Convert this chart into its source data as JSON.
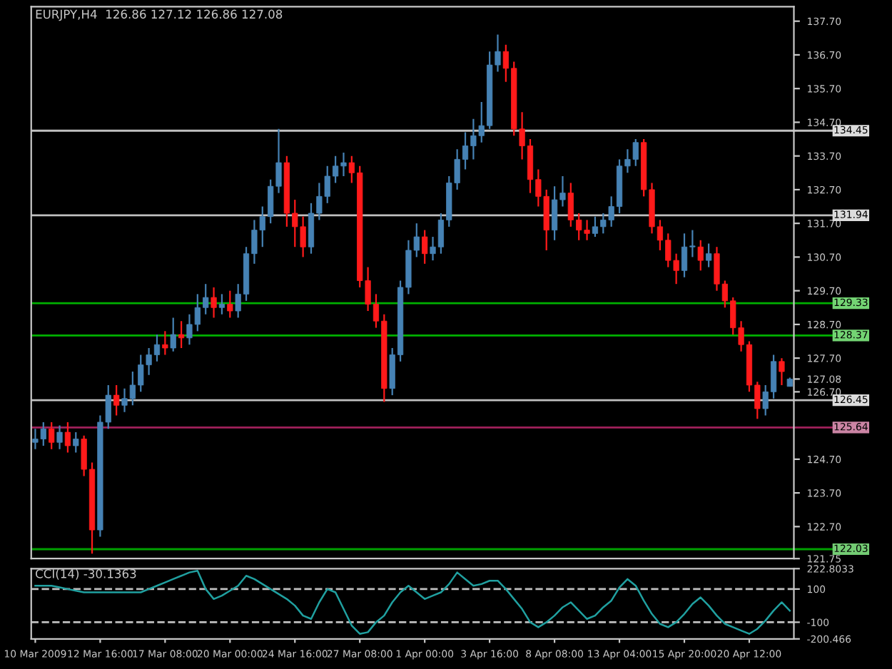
{
  "chart_data": [
    {
      "type": "candlestick",
      "title": "EURJPY,H4  126.86 127.12 126.86 127.08",
      "colors": [
        "#4682b4",
        "#4682b4",
        "#ff1a1a",
        "#4682b4",
        "#ff1a1a",
        "#4682b4",
        "#ff1a1a",
        "#ff1a1a",
        "#4682b4",
        "#4682b4",
        "#ff1a1a",
        "#4682b4",
        "#4682b4",
        "#4682b4",
        "#4682b4",
        "#4682b4",
        "#ff1a1a",
        "#4682b4",
        "#ff1a1a",
        "#4682b4",
        "#4682b4",
        "#4682b4",
        "#ff1a1a",
        "#4682b4",
        "#ff1a1a",
        "#4682b4",
        "#4682b4",
        "#4682b4",
        "#4682b4",
        "#4682b4",
        "#4682b4",
        "#ff1a1a",
        "#ff1a1a",
        "#ff1a1a",
        "#4682b4",
        "#4682b4",
        "#4682b4",
        "#4682b4",
        "#4682b4",
        "#ff1a1a",
        "#ff1a1a",
        "#ff1a1a",
        "#ff1a1a",
        "#ff1a1a",
        "#4682b4",
        "#4682b4",
        "#4682b4",
        "#4682b4",
        "#ff1a1a",
        "#4682b4",
        "#4682b4",
        "#4682b4",
        "#4682b4",
        "#4682b4",
        "#4682b4",
        "#4682b4",
        "#4682b4",
        "#4682b4",
        "#ff1a1a",
        "#ff1a1a",
        "#ff1a1a",
        "#ff1a1a",
        "#ff1a1a",
        "#ff1a1a",
        "#4682b4",
        "#4682b4",
        "#ff1a1a",
        "#ff1a1a",
        "#ff1a1a",
        "#4682b4",
        "#4682b4",
        "#4682b4",
        "#4682b4",
        "#4682b4",
        "#4682b4",
        "#ff1a1a",
        "#ff1a1a",
        "#ff1a1a",
        "#ff1a1a",
        "#ff1a1a",
        "#4682b4",
        "#4682b4",
        "#ff1a1a",
        "#4682b4",
        "#ff1a1a",
        "#ff1a1a",
        "#ff1a1a",
        "#ff1a1a",
        "#ff1a1a",
        "#ff1a1a",
        "#4682b4",
        "#4682b4",
        "#ff1a1a",
        "#4682b4"
      ],
      "categories": [
        null,
        null,
        null,
        null,
        null,
        null,
        null,
        null,
        null,
        null,
        null,
        null,
        null,
        null,
        null,
        null,
        null,
        null,
        null,
        null,
        null,
        null,
        null,
        null,
        null,
        null,
        null,
        null,
        null,
        null,
        null,
        null,
        null,
        null,
        null,
        null,
        null,
        null,
        null,
        null,
        null,
        null,
        null,
        null,
        null,
        null,
        null,
        null,
        null,
        null,
        null,
        null,
        null,
        null,
        null,
        null,
        null,
        null,
        null,
        null,
        null,
        null,
        null,
        null,
        null,
        null,
        null,
        null,
        null,
        null,
        null,
        null,
        null,
        null,
        null,
        null,
        null,
        null,
        null,
        null,
        null,
        null,
        null,
        null,
        null,
        null,
        null,
        null,
        null,
        null,
        null,
        null,
        null,
        null
      ],
      "ohlc": [
        [
          125.2,
          125.6,
          125.0,
          125.3
        ],
        [
          125.3,
          125.8,
          125.1,
          125.6
        ],
        [
          125.6,
          125.8,
          125.0,
          125.2
        ],
        [
          125.2,
          125.7,
          125.0,
          125.5
        ],
        [
          125.5,
          125.8,
          124.9,
          125.1
        ],
        [
          125.1,
          125.5,
          124.9,
          125.3
        ],
        [
          125.3,
          125.4,
          124.2,
          124.4
        ],
        [
          124.4,
          124.6,
          121.9,
          122.6
        ],
        [
          122.6,
          126.0,
          122.4,
          125.8
        ],
        [
          125.8,
          126.9,
          125.6,
          126.6
        ],
        [
          126.6,
          126.9,
          126.0,
          126.3
        ],
        [
          126.3,
          126.8,
          126.1,
          126.5
        ],
        [
          126.5,
          127.3,
          126.3,
          126.9
        ],
        [
          126.9,
          127.8,
          126.7,
          127.5
        ],
        [
          127.5,
          128.0,
          127.2,
          127.8
        ],
        [
          127.8,
          128.4,
          127.6,
          128.1
        ],
        [
          128.1,
          128.5,
          127.8,
          128.0
        ],
        [
          128.0,
          128.9,
          127.9,
          128.4
        ],
        [
          128.4,
          128.8,
          128.0,
          128.3
        ],
        [
          128.3,
          129.0,
          128.1,
          128.7
        ],
        [
          128.7,
          129.6,
          128.5,
          129.2
        ],
        [
          129.2,
          129.9,
          129.0,
          129.5
        ],
        [
          129.5,
          129.8,
          128.9,
          129.2
        ],
        [
          129.2,
          129.6,
          129.0,
          129.3
        ],
        [
          129.3,
          129.7,
          128.9,
          129.1
        ],
        [
          129.1,
          129.9,
          128.9,
          129.6
        ],
        [
          129.6,
          131.0,
          129.4,
          130.8
        ],
        [
          130.8,
          131.8,
          130.5,
          131.5
        ],
        [
          131.5,
          132.2,
          131.0,
          131.9
        ],
        [
          131.9,
          133.0,
          131.7,
          132.8
        ],
        [
          132.8,
          134.5,
          132.6,
          133.5
        ],
        [
          133.5,
          133.7,
          131.6,
          132.0
        ],
        [
          132.0,
          132.4,
          131.0,
          131.6
        ],
        [
          131.6,
          131.9,
          130.7,
          131.0
        ],
        [
          131.0,
          132.3,
          130.8,
          132.0
        ],
        [
          132.0,
          132.9,
          131.8,
          132.5
        ],
        [
          132.5,
          133.4,
          132.3,
          133.1
        ],
        [
          133.1,
          133.7,
          132.9,
          133.4
        ],
        [
          133.4,
          133.8,
          133.1,
          133.5
        ],
        [
          133.5,
          133.7,
          132.9,
          133.2
        ],
        [
          133.2,
          133.4,
          129.8,
          130.0
        ],
        [
          130.0,
          130.4,
          129.1,
          129.3
        ],
        [
          129.3,
          129.6,
          128.6,
          128.8
        ],
        [
          128.8,
          129.0,
          126.4,
          126.8
        ],
        [
          126.8,
          128.0,
          126.6,
          127.8
        ],
        [
          127.8,
          130.0,
          127.6,
          129.8
        ],
        [
          129.8,
          131.2,
          129.6,
          130.9
        ],
        [
          130.9,
          131.7,
          130.7,
          131.3
        ],
        [
          131.3,
          131.5,
          130.5,
          130.8
        ],
        [
          130.8,
          131.3,
          130.6,
          131.0
        ],
        [
          131.0,
          132.0,
          130.8,
          131.8
        ],
        [
          131.8,
          133.1,
          131.6,
          132.9
        ],
        [
          132.9,
          133.9,
          132.7,
          133.6
        ],
        [
          133.6,
          134.4,
          133.3,
          134.0
        ],
        [
          134.0,
          134.8,
          133.6,
          134.3
        ],
        [
          134.3,
          135.3,
          134.1,
          134.6
        ],
        [
          134.6,
          136.8,
          134.5,
          136.4
        ],
        [
          136.4,
          137.3,
          136.2,
          136.8
        ],
        [
          136.8,
          137.0,
          135.9,
          136.3
        ],
        [
          136.3,
          136.5,
          134.3,
          134.5
        ],
        [
          134.5,
          135.0,
          133.6,
          134.0
        ],
        [
          134.0,
          134.2,
          132.6,
          133.0
        ],
        [
          133.0,
          133.3,
          132.2,
          132.5
        ],
        [
          132.5,
          132.7,
          130.9,
          131.5
        ],
        [
          131.5,
          132.8,
          131.2,
          132.4
        ],
        [
          132.4,
          133.1,
          132.2,
          132.6
        ],
        [
          132.6,
          132.9,
          131.6,
          131.8
        ],
        [
          131.8,
          132.0,
          131.2,
          131.5
        ],
        [
          131.5,
          131.8,
          131.2,
          131.4
        ],
        [
          131.4,
          131.9,
          131.3,
          131.6
        ],
        [
          131.6,
          132.0,
          131.4,
          131.8
        ],
        [
          131.8,
          132.5,
          131.6,
          132.2
        ],
        [
          132.2,
          133.6,
          132.0,
          133.4
        ],
        [
          133.4,
          133.9,
          133.2,
          133.6
        ],
        [
          133.6,
          134.2,
          133.4,
          134.1
        ],
        [
          134.1,
          134.2,
          132.5,
          132.7
        ],
        [
          132.7,
          132.9,
          131.4,
          131.6
        ],
        [
          131.6,
          131.8,
          130.9,
          131.2
        ],
        [
          131.2,
          131.4,
          130.4,
          130.6
        ],
        [
          130.6,
          130.8,
          129.9,
          130.3
        ],
        [
          130.3,
          131.4,
          130.1,
          131.0
        ],
        [
          131.0,
          131.5,
          130.7,
          131.0
        ],
        [
          131.0,
          131.2,
          130.3,
          130.6
        ],
        [
          130.6,
          131.1,
          130.4,
          130.8
        ],
        [
          130.8,
          131.0,
          129.7,
          129.9
        ],
        [
          129.9,
          130.0,
          129.2,
          129.4
        ],
        [
          129.4,
          129.5,
          128.4,
          128.6
        ],
        [
          128.6,
          128.8,
          127.9,
          128.1
        ],
        [
          128.1,
          128.2,
          126.7,
          126.9
        ],
        [
          126.9,
          127.0,
          125.9,
          126.2
        ],
        [
          126.2,
          126.9,
          126.0,
          126.7
        ],
        [
          126.7,
          127.8,
          126.5,
          127.6
        ],
        [
          127.6,
          127.7,
          126.9,
          127.3
        ],
        [
          126.86,
          127.12,
          126.86,
          127.08
        ]
      ],
      "ylim": [
        121.75,
        138.13
      ],
      "yticks": [
        {
          "value": 137.7,
          "label": "137.70"
        },
        {
          "value": 136.7,
          "label": "136.70"
        },
        {
          "value": 135.7,
          "label": "135.70"
        },
        {
          "value": 134.7,
          "label": "134.70"
        },
        {
          "value": 133.7,
          "label": "133.70"
        },
        {
          "value": 132.7,
          "label": "132.70"
        },
        {
          "value": 131.7,
          "label": "131.70"
        },
        {
          "value": 130.7,
          "label": "130.70"
        },
        {
          "value": 129.7,
          "label": "129.70"
        },
        {
          "value": 128.7,
          "label": "128.70"
        },
        {
          "value": 127.7,
          "label": "127.70"
        },
        {
          "value": 127.08,
          "label": "127.08"
        },
        {
          "value": 126.7,
          "label": "126.70"
        },
        {
          "value": 124.7,
          "label": "124.70"
        },
        {
          "value": 123.7,
          "label": "123.70"
        },
        {
          "value": 122.7,
          "label": "122.70"
        },
        {
          "value": 121.75,
          "label": "121.75"
        }
      ],
      "ref_lines": [
        {
          "axis": "y",
          "value": 134.45,
          "label": "134.45",
          "color": "#c0c0c0"
        },
        {
          "axis": "y",
          "value": 131.94,
          "label": "131.94",
          "color": "#c0c0c0"
        },
        {
          "axis": "y",
          "value": 129.33,
          "label": "129.33",
          "color": "#00b000"
        },
        {
          "axis": "y",
          "value": 128.37,
          "label": "128.37",
          "color": "#00b000"
        },
        {
          "axis": "y",
          "value": 126.45,
          "label": "126.45",
          "color": "#c0c0c0"
        },
        {
          "axis": "y",
          "value": 125.64,
          "label": "125.64",
          "color": "#a0205a"
        },
        {
          "axis": "y",
          "value": 122.03,
          "label": "122.03",
          "color": "#00a000"
        }
      ],
      "tick_labels": "y"
    },
    {
      "type": "line",
      "title": "CCI(14) -30.1363",
      "categories": [
        "10 Mar 2009",
        null,
        null,
        null,
        null,
        null,
        null,
        null,
        "12 Mar 16:00",
        null,
        null,
        null,
        null,
        null,
        null,
        null,
        "17 Mar 08:00",
        null,
        null,
        null,
        null,
        null,
        null,
        null,
        "20 Mar 00:00",
        null,
        null,
        null,
        null,
        null,
        null,
        null,
        "24 Mar 16:00",
        null,
        null,
        null,
        null,
        null,
        null,
        null,
        "27 Mar 08:00",
        null,
        null,
        null,
        null,
        null,
        null,
        null,
        "1 Apr 00:00",
        null,
        null,
        null,
        null,
        null,
        null,
        null,
        "3 Apr 16:00",
        null,
        null,
        null,
        null,
        null,
        null,
        null,
        "8 Apr 08:00",
        null,
        null,
        null,
        null,
        null,
        null,
        null,
        "13 Apr 04:00",
        null,
        null,
        null,
        null,
        null,
        null,
        null,
        "15 Apr 20:00",
        null,
        null,
        null,
        null,
        null,
        null,
        null,
        "20 Apr 12:00",
        null,
        null,
        null,
        null,
        null
      ],
      "series": [
        {
          "color": "#20a0a0",
          "values": [
            120,
            120,
            120,
            110,
            100,
            90,
            80,
            80,
            80,
            80,
            80,
            80,
            80,
            80,
            100,
            120,
            140,
            160,
            180,
            200,
            210,
            100,
            40,
            60,
            90,
            120,
            180,
            160,
            130,
            100,
            70,
            40,
            0,
            -60,
            -80,
            20,
            100,
            80,
            -20,
            -120,
            -170,
            -160,
            -100,
            -60,
            20,
            80,
            120,
            80,
            40,
            60,
            80,
            130,
            200,
            160,
            120,
            130,
            150,
            150,
            100,
            40,
            -20,
            -100,
            -130,
            -100,
            -60,
            -10,
            20,
            -30,
            -80,
            -60,
            -10,
            30,
            110,
            160,
            120,
            30,
            -50,
            -110,
            -130,
            -100,
            -50,
            10,
            50,
            0,
            -60,
            -110,
            -130,
            -150,
            -170,
            -140,
            -90,
            -30,
            20,
            -30
          ]
        }
      ],
      "ylim": [
        -200.466,
        222.8033
      ],
      "yticks": [
        {
          "value": 222.8033,
          "label": "222.8033"
        },
        100,
        -100,
        {
          "value": -200.466,
          "label": "-200.466"
        }
      ],
      "ref_lines": [
        {
          "axis": "y",
          "value": 100,
          "color": "#c0c0c0",
          "line_style": "dashed"
        },
        {
          "axis": "y",
          "value": -100,
          "color": "#c0c0c0",
          "line_style": "dashed"
        }
      ]
    }
  ]
}
